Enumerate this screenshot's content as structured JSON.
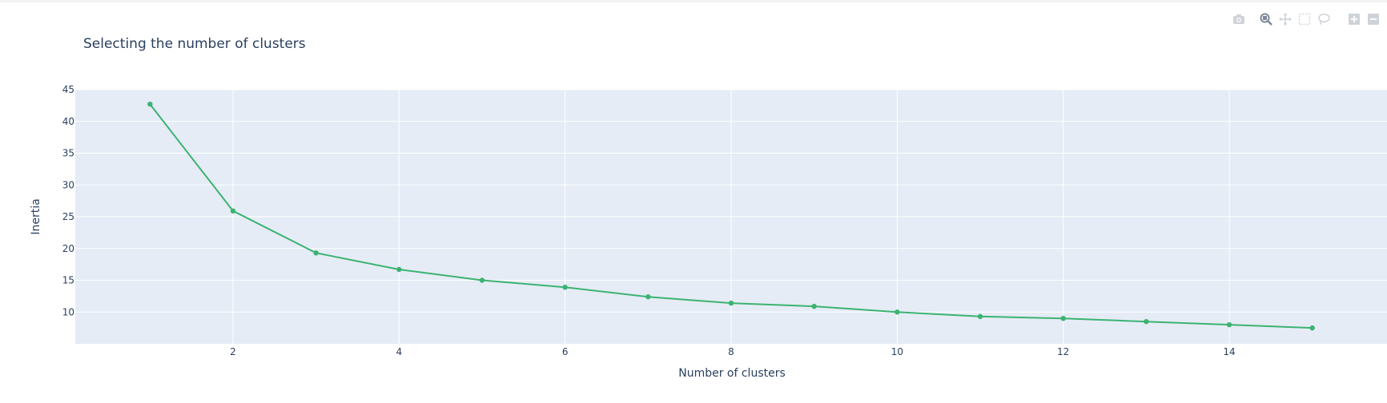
{
  "modebar": {
    "buttons": [
      {
        "icon": "camera-icon",
        "active": false
      },
      {
        "icon": "zoom-icon",
        "active": true
      },
      {
        "icon": "pan-icon",
        "active": false
      },
      {
        "icon": "box-select-icon",
        "active": false
      },
      {
        "icon": "lasso-select-icon",
        "active": false
      },
      {
        "icon": "zoom-in-icon",
        "active": false
      },
      {
        "icon": "zoom-out-icon",
        "active": false
      }
    ]
  },
  "chart_data": {
    "type": "line",
    "title": "Selecting the number of clusters",
    "xlabel": "Number of clusters",
    "ylabel": "Inertia",
    "x": [
      1,
      2,
      3,
      4,
      5,
      6,
      7,
      8,
      9,
      10,
      11,
      12,
      13,
      14,
      15
    ],
    "y": [
      42.7,
      25.9,
      19.3,
      16.7,
      15.0,
      13.9,
      12.4,
      11.4,
      10.9,
      10.0,
      9.3,
      9.0,
      8.5,
      8.0,
      7.5
    ],
    "xlim": [
      0.1,
      15.9
    ],
    "ylim": [
      5,
      45
    ],
    "xticks": [
      2,
      4,
      6,
      8,
      10,
      12,
      14
    ],
    "yticks": [
      10,
      15,
      20,
      25,
      30,
      35,
      40,
      45
    ],
    "grid": true,
    "line_color": "#3cb371",
    "plot_bg": "#e5ecf6",
    "grid_color": "#ffffff"
  }
}
